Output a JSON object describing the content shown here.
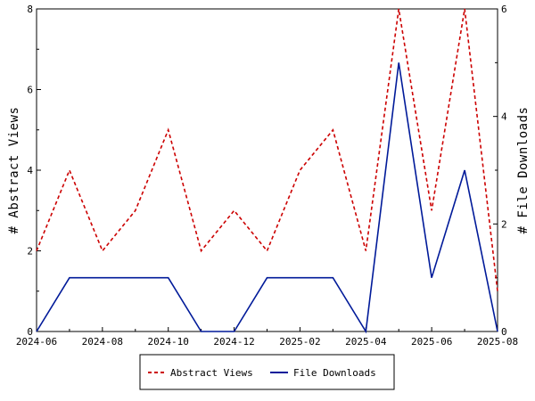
{
  "chart_data": {
    "type": "line",
    "x": [
      "2024-06",
      "2024-07",
      "2024-08",
      "2024-09",
      "2024-10",
      "2024-11",
      "2024-12",
      "2025-01",
      "2025-02",
      "2025-03",
      "2025-04",
      "2025-05",
      "2025-06",
      "2025-07",
      "2025-08"
    ],
    "x_ticks": [
      "2024-06",
      "2024-08",
      "2024-10",
      "2024-12",
      "2025-02",
      "2025-04",
      "2025-06",
      "2025-08"
    ],
    "y_left": {
      "label": "# Abstract Views",
      "ylim": [
        0,
        8
      ],
      "ticks": [
        "0",
        "2",
        "4",
        "6",
        "8"
      ]
    },
    "y_right": {
      "label": "# File Downloads",
      "ylim": [
        0,
        6
      ],
      "ticks": [
        "0",
        "2",
        "4",
        "6"
      ]
    },
    "series": [
      {
        "name": "Abstract Views",
        "axis": "left",
        "color": "#cc0000",
        "style": "dashed",
        "values": [
          2,
          4,
          2,
          3,
          5,
          2,
          3,
          2,
          4,
          5,
          2,
          8,
          3,
          8,
          1
        ]
      },
      {
        "name": "File Downloads",
        "axis": "right",
        "color": "#001a99",
        "style": "solid",
        "values": [
          0,
          1,
          1,
          1,
          1,
          0,
          0,
          1,
          1,
          1,
          0,
          5,
          1,
          3,
          0
        ]
      }
    ],
    "grid": false,
    "legend_position": "bottom-center"
  }
}
